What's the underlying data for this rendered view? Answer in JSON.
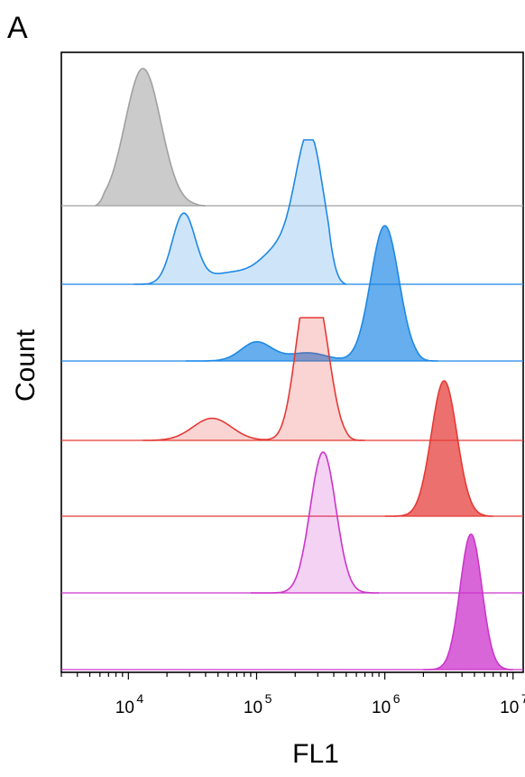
{
  "panel_label": "A",
  "chart_data": {
    "type": "area",
    "subtype": "offset histogram overlay",
    "xlabel": "FL1",
    "ylabel": "Count",
    "x_scale": "log",
    "xlim": [
      3000,
      12000000
    ],
    "x_ticks": [
      {
        "base": "10",
        "exp": "4",
        "value": 10000
      },
      {
        "base": "10",
        "exp": "5",
        "value": 100000
      },
      {
        "base": "10",
        "exp": "6",
        "value": 1000000
      },
      {
        "base": "10",
        "exp": "7",
        "value": 10000000
      }
    ],
    "grid": false,
    "legend": "none",
    "series": [
      {
        "color": "#a0a0a0",
        "fill_opacity": 0.55,
        "peaks": [
          {
            "center": 13000,
            "height": 1.0,
            "width": 0.14
          }
        ],
        "range": [
          5500,
          40000
        ]
      },
      {
        "color": "#1e88e5",
        "fill_opacity": 0.22,
        "peaks": [
          {
            "center": 27000,
            "height": 0.48,
            "width": 0.09
          },
          {
            "center": 65000,
            "height": 0.08,
            "width": 0.2
          },
          {
            "center": 150000,
            "height": 0.22,
            "width": 0.14
          },
          {
            "center": 260000,
            "height": 1.0,
            "width": 0.11
          }
        ],
        "range": [
          11000,
          500000
        ]
      },
      {
        "color": "#1e88e5",
        "fill_opacity": 0.68,
        "peaks": [
          {
            "center": 100000,
            "height": 0.14,
            "width": 0.12
          },
          {
            "center": 250000,
            "height": 0.06,
            "width": 0.15
          },
          {
            "center": 1000000,
            "height": 1.0,
            "width": 0.11
          }
        ],
        "range": [
          28000,
          2600000
        ]
      },
      {
        "color": "#e53935",
        "fill_opacity": 0.22,
        "peaks": [
          {
            "center": 45000,
            "height": 0.18,
            "width": 0.15
          },
          {
            "center": 240000,
            "height": 0.98,
            "width": 0.09
          },
          {
            "center": 320000,
            "height": 0.72,
            "width": 0.09
          }
        ],
        "range": [
          13000,
          700000
        ]
      },
      {
        "color": "#e53935",
        "fill_opacity": 0.72,
        "peaks": [
          {
            "center": 2900000,
            "height": 1.0,
            "width": 0.1
          }
        ],
        "range": [
          1000000,
          7000000
        ]
      },
      {
        "color": "#cc33cc",
        "fill_opacity": 0.22,
        "peaks": [
          {
            "center": 330000,
            "height": 1.0,
            "width": 0.1
          }
        ],
        "range": [
          90000,
          900000
        ]
      },
      {
        "color": "#cc33cc",
        "fill_opacity": 0.75,
        "peaks": [
          {
            "center": 4700000,
            "height": 1.0,
            "width": 0.085
          }
        ],
        "range": [
          2000000,
          10000000
        ]
      }
    ],
    "baselines": [
      {
        "color": "#a0a0a0",
        "x_start": 3000,
        "series_index": 0
      },
      {
        "color": "#1e88e5",
        "x_start": 3000,
        "series_index": 1
      },
      {
        "color": "#1e88e5",
        "x_start": 3000,
        "series_index": 2
      },
      {
        "color": "#e53935",
        "x_start": 3000,
        "series_index": 3
      },
      {
        "color": "#e53935",
        "x_start": 3000,
        "series_index": 4
      },
      {
        "color": "#cc33cc",
        "x_start": 3000,
        "series_index": 5
      },
      {
        "color": "#cc33cc",
        "x_start": 3000,
        "series_index": 6
      }
    ]
  }
}
